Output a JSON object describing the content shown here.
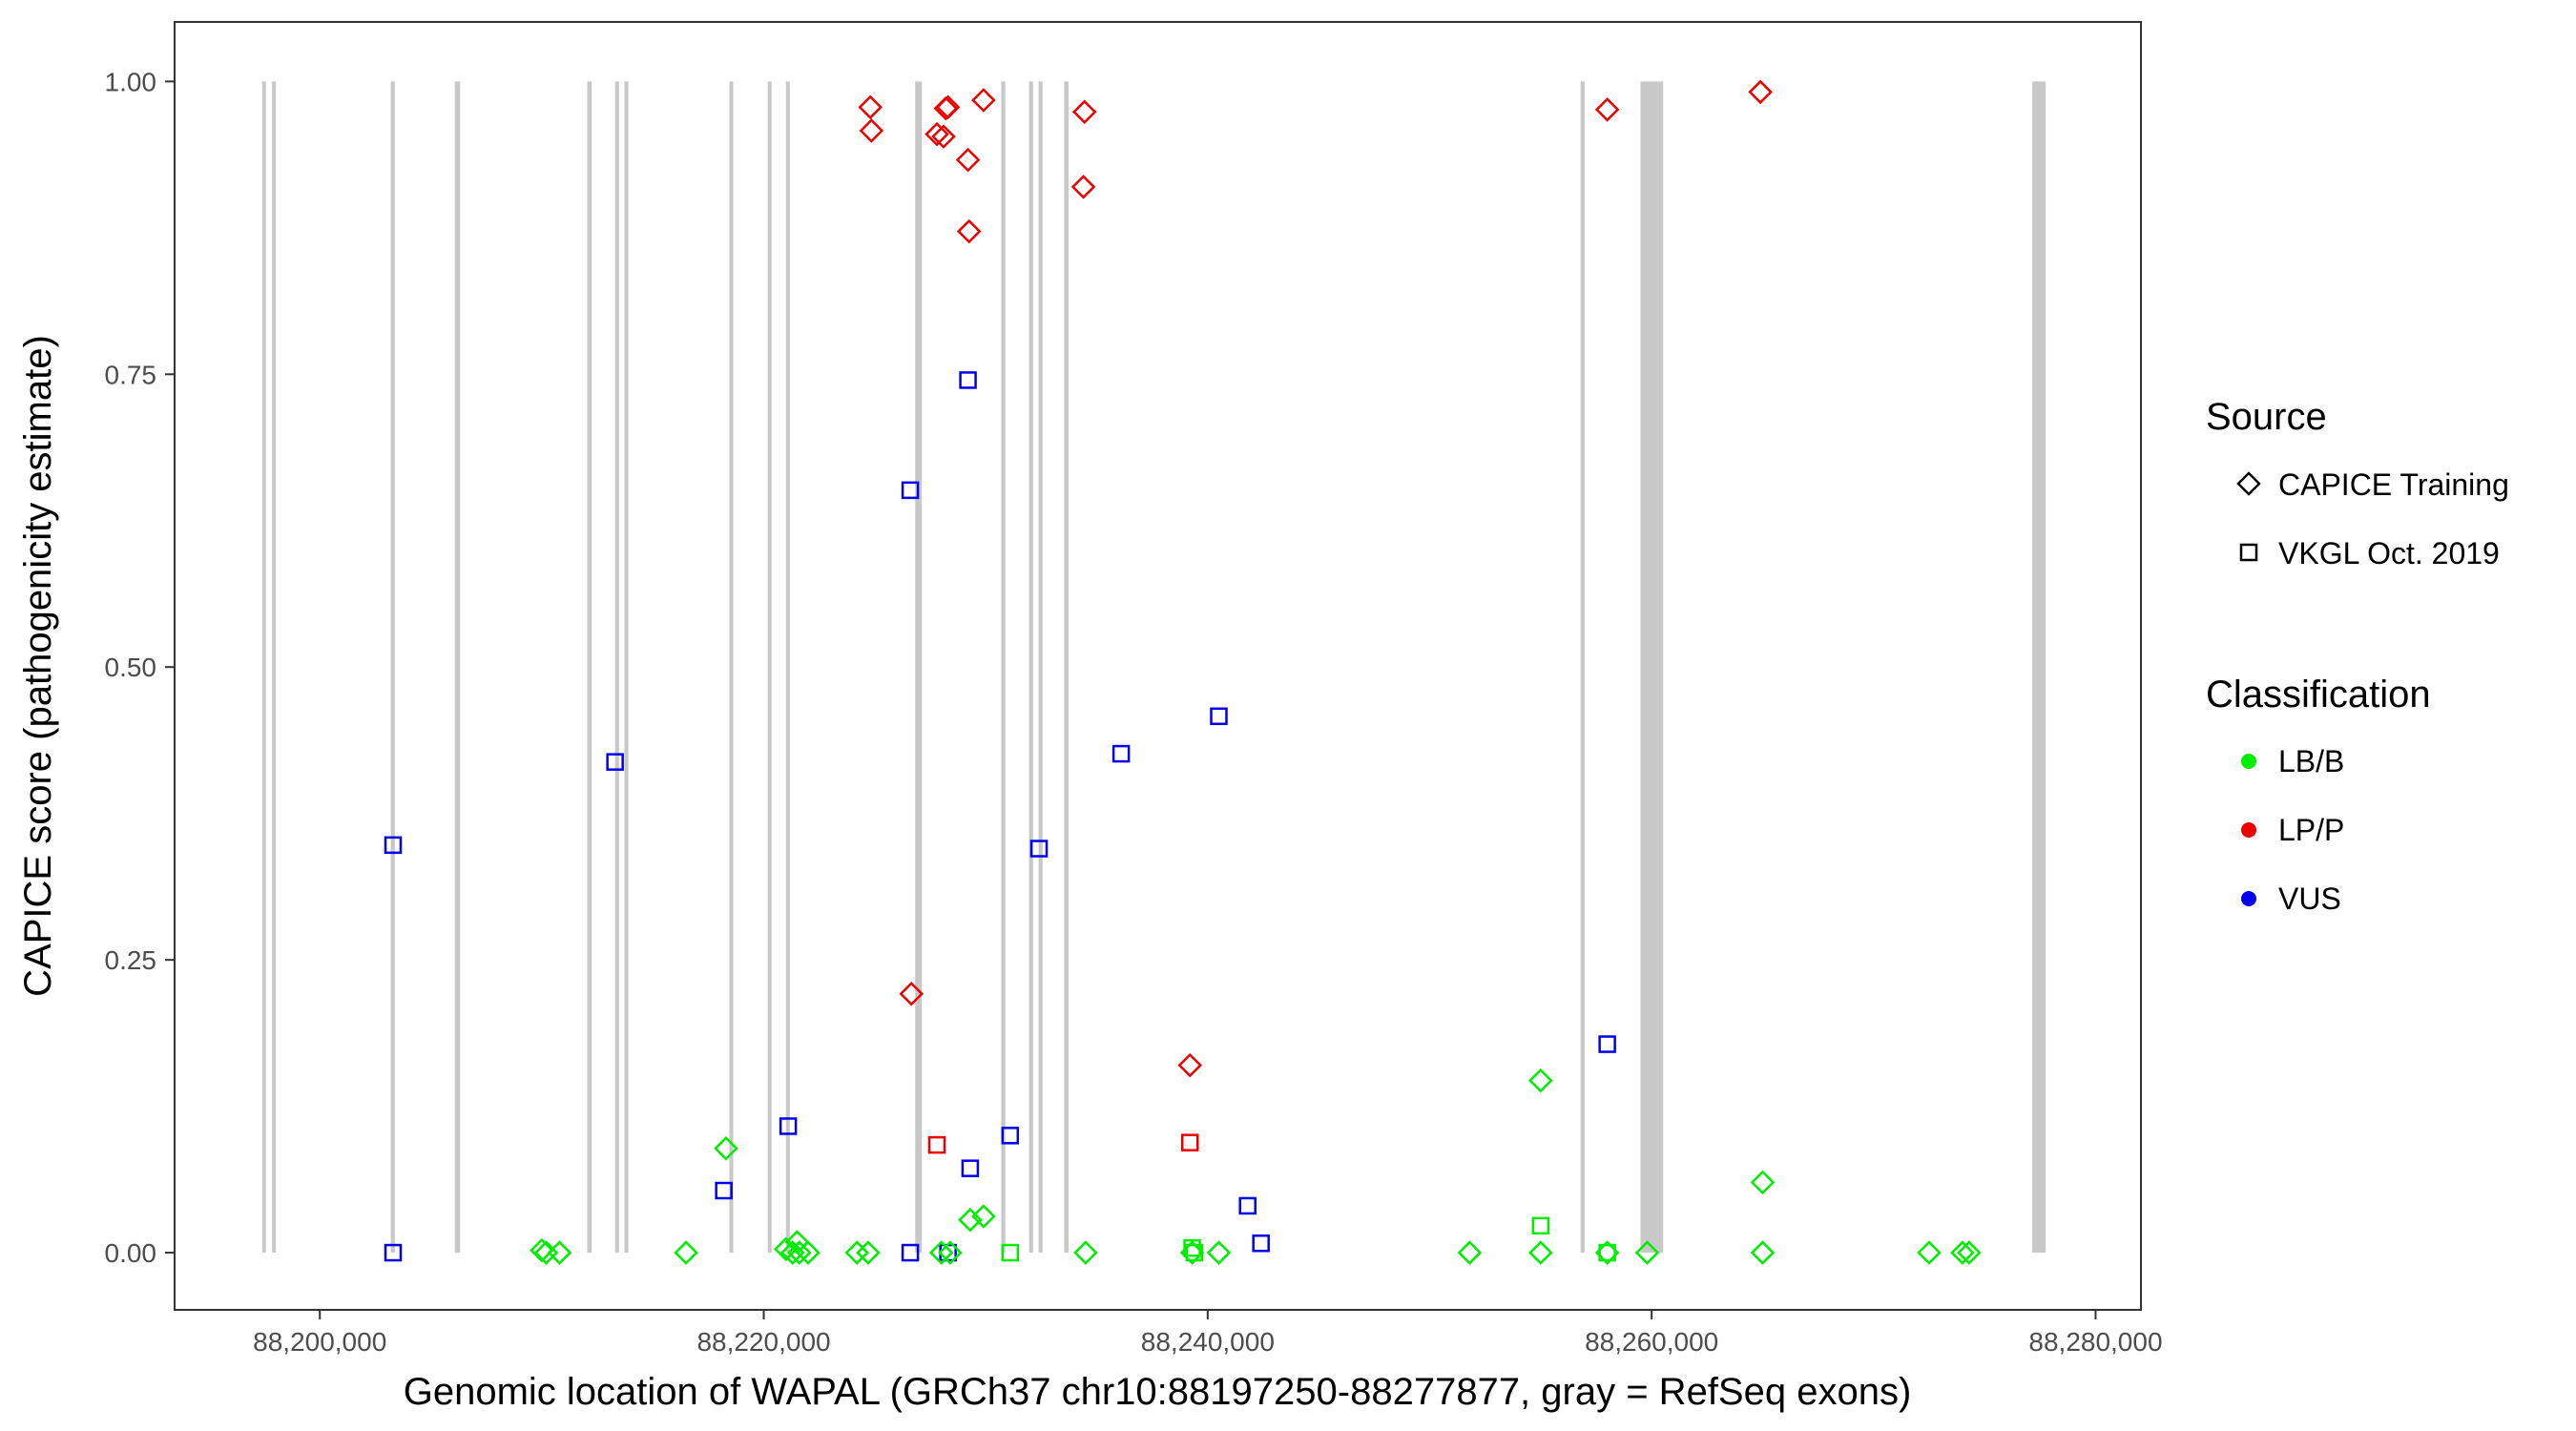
{
  "chart_data": {
    "type": "scatter",
    "xlabel": "Genomic location of WAPAL (GRCh37 chr10:88197250-88277877, gray = RefSeq exons)",
    "ylabel": "CAPICE score (pathogenicity estimate)",
    "xlim": [
      88193500,
      88282000
    ],
    "ylim": [
      -0.048,
      1.05
    ],
    "x_ticks": [
      88200000,
      88220000,
      88240000,
      88260000,
      88280000
    ],
    "x_tick_labels": [
      "88,200,000",
      "88,220,000",
      "88,240,000",
      "88,260,000",
      "88,280,000"
    ],
    "y_ticks": [
      0,
      0.25,
      0.5,
      0.75,
      1.0
    ],
    "y_tick_labels": [
      "0.00",
      "0.25",
      "0.50",
      "0.75",
      "1.00"
    ],
    "grid": false,
    "exon_color": "#c8c8c8",
    "exons": [
      [
        88197400,
        88197560
      ],
      [
        88197850,
        88198000
      ],
      [
        88203200,
        88203380
      ],
      [
        88206080,
        88206320
      ],
      [
        88212050,
        88212250
      ],
      [
        88213300,
        88213480
      ],
      [
        88213720,
        88213900
      ],
      [
        88218450,
        88218620
      ],
      [
        88220180,
        88220350
      ],
      [
        88221000,
        88221170
      ],
      [
        88226820,
        88227120
      ],
      [
        88230700,
        88230880
      ],
      [
        88231950,
        88232130
      ],
      [
        88232380,
        88232560
      ],
      [
        88233530,
        88233730
      ],
      [
        88256800,
        88256980
      ],
      [
        88259500,
        88260520
      ],
      [
        88277150,
        88277750
      ]
    ],
    "legend": {
      "position": "right",
      "source_title": "Source",
      "source_entries": [
        {
          "label": "CAPICE Training",
          "shape": "diamond"
        },
        {
          "label": "VKGL Oct. 2019",
          "shape": "square"
        }
      ],
      "class_title": "Classification",
      "class_entries": [
        {
          "label": "LB/B",
          "color": "#00ee00"
        },
        {
          "label": "LP/P",
          "color": "#ee0000"
        },
        {
          "label": "VUS",
          "color": "#0000ee"
        }
      ]
    },
    "series": [
      {
        "source": "CAPICE Training",
        "classification": "LP/P",
        "color": "#ee0000",
        "shape": "diamond",
        "x": [
          88224800,
          88224850,
          88227800,
          88228200,
          88228300,
          88228100,
          88229200,
          88229250,
          88229900,
          88234450,
          88234400,
          88258000,
          88264900,
          88226650,
          88239200
        ],
        "y": [
          0.978,
          0.958,
          0.955,
          0.977,
          0.978,
          0.953,
          0.933,
          0.872,
          0.984,
          0.974,
          0.91,
          0.976,
          0.991,
          0.221,
          0.16
        ]
      },
      {
        "source": "VKGL Oct. 2019",
        "classification": "LP/P",
        "color": "#ee0000",
        "shape": "square",
        "x": [
          88227800,
          88239200
        ],
        "y": [
          0.092,
          0.094
        ]
      },
      {
        "source": "VKGL Oct. 2019",
        "classification": "VUS",
        "color": "#0000ee",
        "shape": "square",
        "x": [
          88203300,
          88203300,
          88213300,
          88218200,
          88221100,
          88226600,
          88226600,
          88228300,
          88229200,
          88229300,
          88231100,
          88232400,
          88236100,
          88240500,
          88241800,
          88242400,
          88258000
        ],
        "y": [
          0.348,
          0.0,
          0.419,
          0.053,
          0.108,
          0.651,
          0.0,
          0.0,
          0.745,
          0.072,
          0.1,
          0.345,
          0.426,
          0.458,
          0.04,
          0.008,
          0.178
        ]
      },
      {
        "source": "CAPICE Training",
        "classification": "LB/B",
        "color": "#00ee00",
        "shape": "diamond",
        "x": [
          88210000,
          88210200,
          88210800,
          88216500,
          88218300,
          88221000,
          88221300,
          88221600,
          88222000,
          88221500,
          88224200,
          88224700,
          88228000,
          88228400,
          88229300,
          88229900,
          88234500,
          88239300,
          88240500,
          88251800,
          88255000,
          88255000,
          88258000,
          88259800,
          88265000,
          88265000,
          88272500,
          88274000,
          88274300
        ],
        "y": [
          0.002,
          0.0,
          0.0,
          0.0,
          0.089,
          0.003,
          0.0,
          0.0,
          0.0,
          0.009,
          0.0,
          0.0,
          0.0,
          0.0,
          0.028,
          0.031,
          0.0,
          0.0,
          0.0,
          0.0,
          0.147,
          0.0,
          0.0,
          0.0,
          0.06,
          0.0,
          0.0,
          0.0,
          0.0
        ]
      },
      {
        "source": "VKGL Oct. 2019",
        "classification": "LB/B",
        "color": "#00ee00",
        "shape": "square",
        "x": [
          88231100,
          88239300,
          88239400,
          88255000,
          88258000
        ],
        "y": [
          0.0,
          0.004,
          0.0,
          0.023,
          0.0
        ]
      }
    ]
  }
}
